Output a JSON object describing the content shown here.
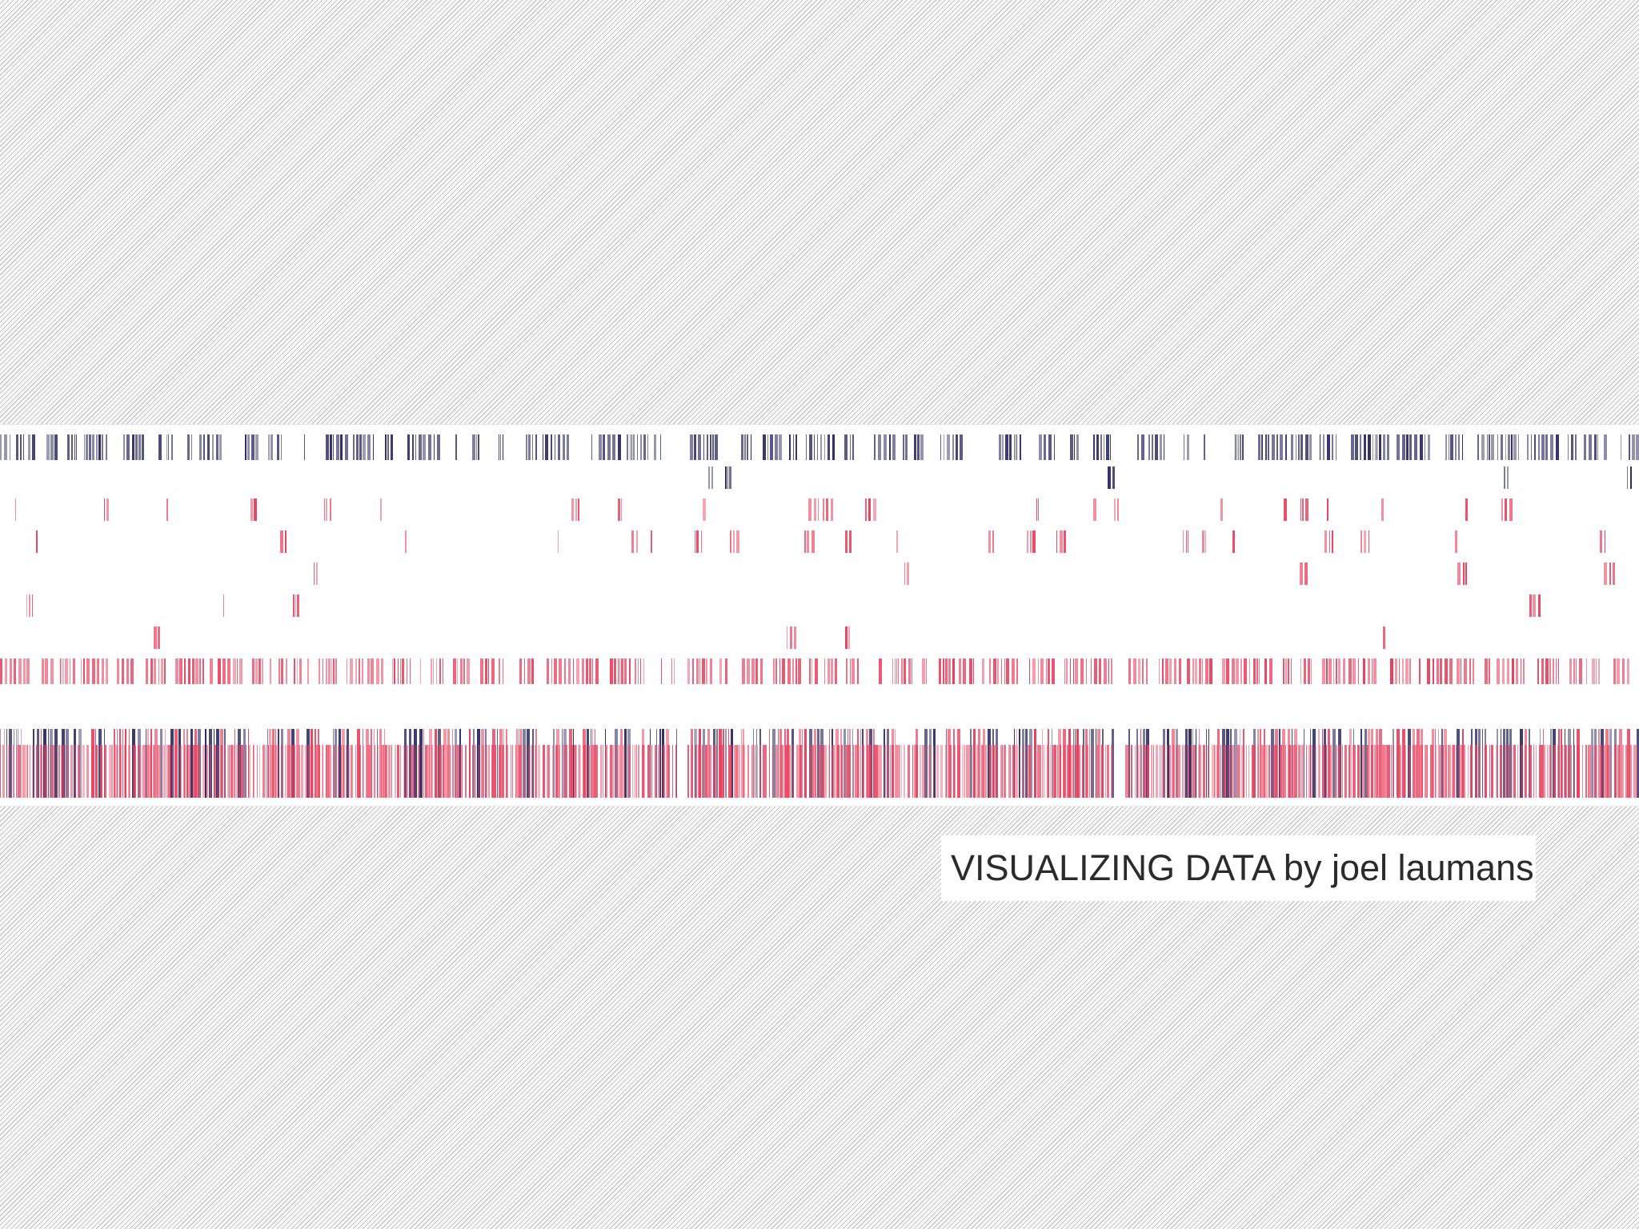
{
  "title": "VISUALIZING DATA by joel laumans",
  "colors": {
    "navy": "#2f2d63",
    "red": "#e8415f",
    "background": "#fafafa",
    "hatch": "#c7c7c7",
    "band": "#ffffff",
    "text": "#2b2b2b"
  },
  "chart_data": {
    "type": "barcode",
    "grid": false,
    "legend": "none",
    "rows": [
      {
        "color": "navy",
        "density": 0.56,
        "seed": 11
      },
      {
        "color": "navy",
        "density": 0.07,
        "seed": 23
      },
      {
        "color": "red",
        "density": 0.24,
        "seed": 37
      },
      {
        "color": "red",
        "density": 0.18,
        "seed": 41
      },
      {
        "color": "red",
        "density": 0.1,
        "seed": 53
      },
      {
        "color": "red",
        "density": 0.045,
        "seed": 67
      },
      {
        "color": "red",
        "density": 0.022,
        "seed": 71
      },
      {
        "color": "red",
        "density": 0.75,
        "seed": 83
      },
      {
        "color": "navy+red",
        "density": 0.82,
        "seed": 97
      }
    ]
  }
}
